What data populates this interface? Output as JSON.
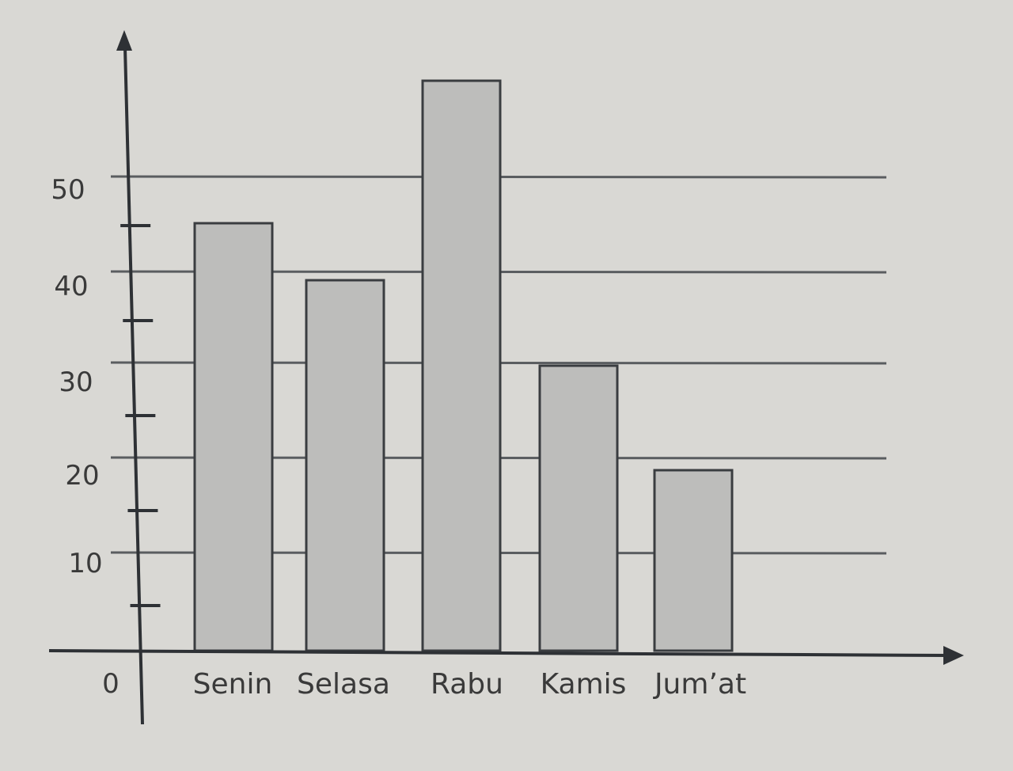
{
  "chart_data": {
    "type": "bar",
    "categories": [
      "Senin",
      "Selasa",
      "Rabu",
      "Kamis",
      "Jum’at"
    ],
    "values": [
      45,
      39,
      60,
      30,
      19
    ],
    "y_tick_labels": [
      "0",
      "10",
      "20",
      "30",
      "40",
      "50"
    ],
    "ylim": [
      0,
      60
    ],
    "title": "",
    "xlabel": "",
    "ylabel": "",
    "grid": true,
    "legend": "none",
    "colors": {
      "background": "#d9d8d4",
      "bar_fill": "#bdbdbb",
      "bar_stroke": "#3a3d40",
      "gridline": "#5a5d60",
      "axis": "#2e3135",
      "text": "#3a3a3a"
    }
  }
}
